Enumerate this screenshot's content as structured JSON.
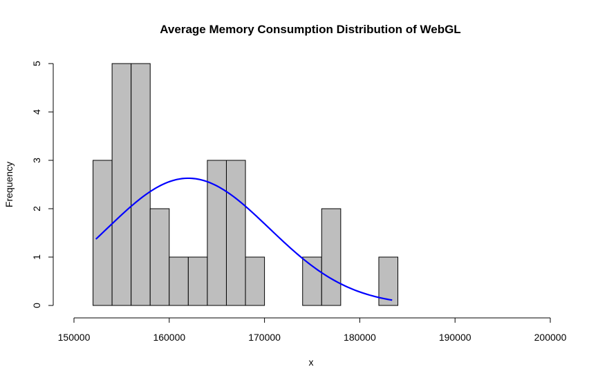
{
  "chart_data": {
    "type": "bar",
    "title": "Average Memory Consumption Distribution of WebGL",
    "xlabel": "x",
    "ylabel": "Frequency",
    "xlim": [
      150000,
      200000
    ],
    "ylim": [
      0,
      5
    ],
    "x_ticks": [
      150000,
      160000,
      170000,
      180000,
      190000,
      200000
    ],
    "x_tick_labels": [
      "150000",
      "160000",
      "170000",
      "180000",
      "190000",
      "200000"
    ],
    "y_ticks": [
      0,
      1,
      2,
      3,
      4,
      5
    ],
    "y_tick_labels": [
      "0",
      "1",
      "2",
      "3",
      "4",
      "5"
    ],
    "grid": false,
    "bins": [
      {
        "x0": 152000,
        "x1": 154000,
        "count": 3
      },
      {
        "x0": 154000,
        "x1": 156000,
        "count": 5
      },
      {
        "x0": 156000,
        "x1": 158000,
        "count": 5
      },
      {
        "x0": 158000,
        "x1": 160000,
        "count": 2
      },
      {
        "x0": 160000,
        "x1": 162000,
        "count": 1
      },
      {
        "x0": 162000,
        "x1": 164000,
        "count": 1
      },
      {
        "x0": 164000,
        "x1": 166000,
        "count": 3
      },
      {
        "x0": 166000,
        "x1": 168000,
        "count": 3
      },
      {
        "x0": 168000,
        "x1": 170000,
        "count": 1
      },
      {
        "x0": 170000,
        "x1": 172000,
        "count": 0
      },
      {
        "x0": 172000,
        "x1": 174000,
        "count": 0
      },
      {
        "x0": 174000,
        "x1": 176000,
        "count": 1
      },
      {
        "x0": 176000,
        "x1": 178000,
        "count": 2
      },
      {
        "x0": 178000,
        "x1": 180000,
        "count": 0
      },
      {
        "x0": 180000,
        "x1": 182000,
        "count": 0
      },
      {
        "x0": 182000,
        "x1": 184000,
        "count": 1
      }
    ],
    "curve": {
      "type": "normal-density",
      "mean": 162000,
      "sd": 8500,
      "peak": 2.63,
      "x_from": 152300,
      "x_to": 183400
    },
    "colors": {
      "bar_fill": "#bebebe",
      "bar_stroke": "#000000",
      "curve": "#0000ff",
      "axis": "#000000",
      "background": "#ffffff"
    }
  }
}
